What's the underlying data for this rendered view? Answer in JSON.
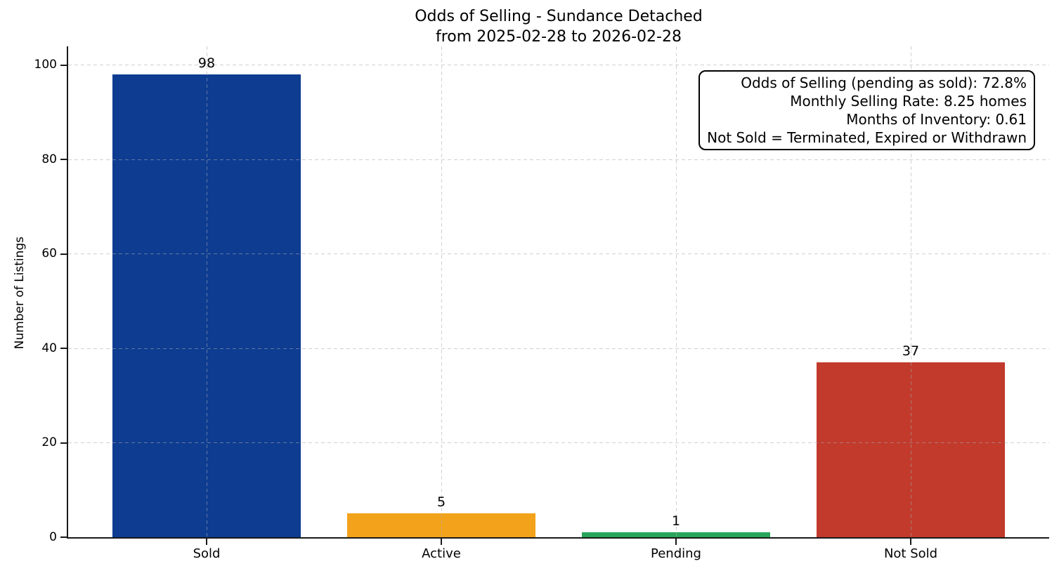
{
  "chart_data": {
    "type": "bar",
    "title": "Odds of Selling - Sundance Detached",
    "subtitle": "from 2025-02-28 to 2026-02-28",
    "categories": [
      "Sold",
      "Active",
      "Pending",
      "Not Sold"
    ],
    "values": [
      98,
      5,
      1,
      37
    ],
    "bar_colors": [
      "#0d3c91",
      "#f3a31b",
      "#28a55a",
      "#c13a2c"
    ],
    "xlabel": "",
    "ylabel": "Number of Listings",
    "ylim": [
      0,
      104
    ],
    "yticks": [
      0,
      20,
      40,
      60,
      80,
      100
    ],
    "grid": "dashed gridlines on both axes, drawn over bars",
    "legend": "none",
    "annotation_box": {
      "lines": [
        "Odds of Selling (pending as sold): 72.8%",
        "Monthly Selling Rate: 8.25 homes",
        "Months of Inventory: 0.61",
        "Not Sold = Terminated, Expired or Withdrawn"
      ]
    }
  },
  "colors": {
    "background": "#ffffff",
    "axis": "#1a1a1a",
    "grid": "#aaaaaa",
    "text": "#000000",
    "bar_sold": "#0d3c91",
    "bar_active": "#f3a31b",
    "bar_pending": "#28a55a",
    "bar_not_sold": "#c13a2c"
  }
}
